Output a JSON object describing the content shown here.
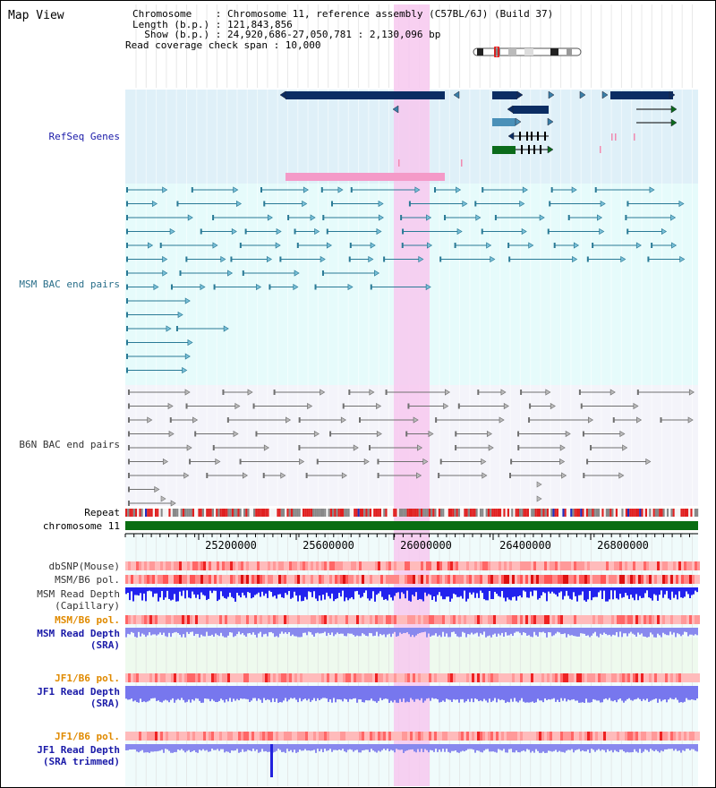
{
  "title": "Map View",
  "info": {
    "chromosome_line": "Chromosome    : Chromosome 11, reference assembly (C57BL/6J) (Build 37)",
    "length_line": "Length (b.p.) : 121,843,856",
    "show_line": "  Show (b.p.) : 24,920,686-27,050,781 : 2,130,096 bp",
    "coverage_line": "Read coverage check span : 10,000"
  },
  "tracks": {
    "refseq": "RefSeq Genes",
    "msm_bac": "MSM BAC end pairs",
    "b6n_bac": "B6N BAC end pairs",
    "repeat": "Repeat",
    "chromosome": "chromosome 11",
    "dbsnp": "dbSNP(Mouse)",
    "msm_b6_pol_1": "MSM/B6 pol.",
    "msm_read_depth_cap_1": "MSM Read Depth",
    "msm_read_depth_cap_2": "(Capillary)",
    "msm_b6_pol_2": "MSM/B6 pol.",
    "msm_read_depth_sra_1": "MSM Read Depth",
    "msm_read_depth_sra_2": "(SRA)",
    "jf1_b6_pol_1": "JF1/B6 pol.",
    "jf1_read_depth_sra_1": "JF1 Read Depth",
    "jf1_read_depth_sra_2": "(SRA)",
    "jf1_b6_pol_2": "JF1/B6 pol.",
    "jf1_read_depth_trim_1": "JF1 Read Depth",
    "jf1_read_depth_trim_2": "(SRA trimmed)"
  },
  "axis_ticks": [
    "25200000",
    "25600000",
    "26000000",
    "26400000",
    "26800000"
  ],
  "colors": {
    "refseq_bg": "#dff0f8",
    "msm_bg": "#e6fbfb",
    "b6n_bg": "#f4f4fa",
    "highlight": "#f7c8ef",
    "gene_dark": "#0b2d63",
    "gene_teal": "#4a90b8",
    "gene_green": "#0b6b1b",
    "msm_pair": "#2a7a96",
    "b6n_pair": "#707070",
    "chrom_green": "#0a6e12",
    "depth_blue": "#2222ee",
    "depth_light": "#7777ee",
    "label_dark_blue": "#1a1aa8",
    "label_teal": "#2a6f8a",
    "label_orange": "#e08a00",
    "label_gray": "#333333"
  }
}
